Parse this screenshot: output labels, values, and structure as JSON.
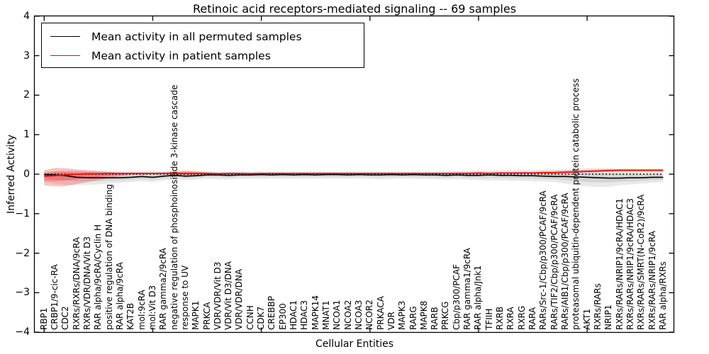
{
  "legend": {
    "items": [
      {
        "label": "Mean activity in all permuted samples",
        "color": "#000000"
      },
      {
        "label": "Mean activity in patient samples",
        "color": "#ff0000"
      }
    ]
  },
  "colors": {
    "permuted_line": "#000000",
    "patient_line": "#ff0000",
    "permuted_band": "rgba(0,0,0,0.085)",
    "patient_band": "rgba(255,0,0,0.24)",
    "zero_line": "#000000",
    "spine": "#000000",
    "background": "#ffffff"
  },
  "chart_data": {
    "type": "line",
    "title": "Retinoic acid receptors-mediated signaling -- 69 samples",
    "xlabel": "Cellular Entities",
    "ylabel": "Inferred Activity",
    "ylim": [
      -4,
      4
    ],
    "grid": false,
    "legend_position": "upper left",
    "y_tick_labels": [
      "4",
      "3",
      "2",
      "1",
      "0",
      "−1",
      "−2",
      "−3",
      "−4"
    ],
    "y_tick_values": [
      4,
      3,
      2,
      1,
      0,
      -1,
      -2,
      -3,
      -4
    ],
    "categories": [
      "RBP1",
      "CRBP1/9-cic-RA",
      "CDC2",
      "RXRs/RXRs/DNA/9cRA",
      "RXRs/VDR/DNA/Vit D3",
      "RAR alpha/9cRA/Cyclin H",
      "positive regulation of DNA binding",
      "RAR alpha/9cRA",
      "KAT2B",
      "mol:9cRA",
      "mol:Vit D3",
      "RAR gamma2/9cRA",
      "negative regulation of phosphoinositide 3-kinase cascade",
      "response to UV",
      "MAPK1",
      "PRKCA",
      "VDR/VDR/Vit D3",
      "VDR/Vit D3/DNA",
      "VDR/VDR/DNA",
      "CCNH",
      "CDK7",
      "CREBBP",
      "EP300",
      "HDAC1",
      "HDAC3",
      "MAPK14",
      "MNAT1",
      "NCOA1",
      "NCOA2",
      "NCOA3",
      "NCOR2",
      "PRKACA",
      "VDR",
      "MAPK3",
      "RARG",
      "MAPK8",
      "RARB",
      "PRKCG",
      "Cbp/p300/PCAF",
      "RAR gamma1/9cRA",
      "RAR alpha/Jnk1",
      "TFIIH",
      "RXRB",
      "RXRA",
      "RXRG",
      "RARA",
      "RARs/Src-1/Cbp/p300/PCAF/9cRA",
      "RARs/TIF2/Cbp/p300/PCAF/9cRA",
      "RARs/AIB1/Cbp/p300/PCAF/9cRA",
      "proteasomal ubiquitin-dependent protein catabolic process",
      "AKT1",
      "RXRs/RARs",
      "NRIP1",
      "RXRs/RARs/NRIP1/9cRA/HDAC1",
      "RXRs/RARs/NRIP1/9cRA/HDAC3",
      "RXRs/RARs/SMRT(N-CoR2)/9cRA",
      "RXRs/RARs/NRIP1/9cRA",
      "RAR alpha/RXRs"
    ],
    "series": [
      {
        "name": "Mean activity in all permuted samples",
        "color": "#000000",
        "style": "solid",
        "values": [
          -0.01,
          -0.02,
          -0.04,
          -0.08,
          -0.09,
          -0.09,
          -0.09,
          -0.09,
          -0.08,
          -0.06,
          -0.08,
          -0.05,
          -0.03,
          -0.05,
          -0.04,
          -0.02,
          -0.02,
          -0.03,
          -0.02,
          -0.02,
          -0.01,
          -0.02,
          -0.01,
          -0.02,
          -0.01,
          -0.02,
          -0.01,
          -0.01,
          -0.02,
          -0.01,
          -0.02,
          -0.02,
          -0.01,
          -0.02,
          -0.01,
          -0.02,
          -0.02,
          -0.03,
          -0.02,
          -0.03,
          -0.03,
          -0.02,
          -0.03,
          -0.03,
          -0.04,
          -0.04,
          -0.05,
          -0.06,
          -0.06,
          -0.07,
          -0.08,
          -0.09,
          -0.1,
          -0.1,
          -0.09,
          -0.09,
          -0.08,
          -0.08
        ]
      },
      {
        "name": "Mean activity in patient samples",
        "color": "#ff0000",
        "style": "solid",
        "values": [
          -0.05,
          -0.04,
          -0.02,
          0,
          0.01,
          0.01,
          0.02,
          0.02,
          0.02,
          0.02,
          0.02,
          0.02,
          0.02,
          0.02,
          0.02,
          0.02,
          0.01,
          0.02,
          0.02,
          0.01,
          0.02,
          0.02,
          0.02,
          0.02,
          0.02,
          0.02,
          0.02,
          0.02,
          0.02,
          0.02,
          0.02,
          0.02,
          0.02,
          0.02,
          0.02,
          0.02,
          0.02,
          0.02,
          0.02,
          0.02,
          0.03,
          0.02,
          0.03,
          0.03,
          0.03,
          0.03,
          0.04,
          0.04,
          0.05,
          0.06,
          0.07,
          0.08,
          0.09,
          0.1,
          0.1,
          0.1,
          0.1,
          0.1
        ]
      }
    ],
    "zero_reference_line": {
      "value": 0,
      "style": "dotted",
      "color": "#000000"
    },
    "bands": [
      {
        "name": "permuted-std-band",
        "color": "rgba(0,0,0,0.085)",
        "upper": [
          0.06,
          0.08,
          0.09,
          0.09,
          0.08,
          0.08,
          0.07,
          0.07,
          0.08,
          0.07,
          0.08,
          0.07,
          0.06,
          0.07,
          0.06,
          0.07,
          0.06,
          0.07,
          0.06,
          0.06,
          0.07,
          0.06,
          0.07,
          0.06,
          0.07,
          0.06,
          0.07,
          0.06,
          0.07,
          0.06,
          0.07,
          0.07,
          0.06,
          0.07,
          0.06,
          0.07,
          0.07,
          0.08,
          0.08,
          0.09,
          0.09,
          0.1,
          0.1,
          0.1,
          0.11,
          0.11,
          0.12,
          0.12,
          0.13,
          0.14,
          0.15,
          0.16,
          0.15,
          0.13,
          0.12,
          0.1,
          0.09,
          0.08
        ],
        "lower": [
          -0.2,
          -0.24,
          -0.27,
          -0.28,
          -0.27,
          -0.26,
          -0.24,
          -0.22,
          -0.2,
          -0.18,
          -0.2,
          -0.16,
          -0.13,
          -0.15,
          -0.14,
          -0.12,
          -0.13,
          -0.14,
          -0.12,
          -0.11,
          -0.12,
          -0.11,
          -0.12,
          -0.11,
          -0.12,
          -0.11,
          -0.12,
          -0.11,
          -0.12,
          -0.11,
          -0.12,
          -0.13,
          -0.12,
          -0.11,
          -0.12,
          -0.12,
          -0.13,
          -0.14,
          -0.13,
          -0.14,
          -0.15,
          -0.16,
          -0.16,
          -0.17,
          -0.17,
          -0.18,
          -0.19,
          -0.2,
          -0.24,
          -0.28,
          -0.31,
          -0.33,
          -0.32,
          -0.28,
          -0.26,
          -0.24,
          -0.22,
          -0.2
        ]
      },
      {
        "name": "patient-std-band",
        "color": "rgba(255,0,0,0.24)",
        "upper": [
          0.1,
          0.16,
          0.15,
          0.12,
          0.1,
          0.08,
          0.06,
          0.04,
          0.04,
          0.04,
          0.04,
          0.05,
          0.08,
          0.09,
          0.08,
          0.05,
          0.04,
          0.04,
          0.04,
          0.04,
          0.04,
          0.04,
          0.04,
          0.04,
          0.04,
          0.04,
          0.04,
          0.04,
          0.04,
          0.04,
          0.04,
          0.04,
          0.04,
          0.04,
          0.04,
          0.04,
          0.04,
          0.04,
          0.05,
          0.05,
          0.05,
          0.05,
          0.05,
          0.05,
          0.06,
          0.06,
          0.07,
          0.08,
          0.09,
          0.1,
          0.11,
          0.12,
          0.13,
          0.13,
          0.13,
          0.13,
          0.13,
          0.13
        ],
        "lower": [
          -0.28,
          -0.31,
          -0.3,
          -0.25,
          -0.2,
          -0.15,
          -0.1,
          -0.05,
          -0.02,
          -0.01,
          0,
          0,
          -0.04,
          -0.05,
          -0.03,
          -0.01,
          -0.01,
          -0.01,
          0,
          -0.01,
          0,
          0,
          0,
          0,
          0,
          0,
          0,
          0,
          0,
          0,
          0,
          0,
          0,
          0,
          0,
          0,
          0,
          0,
          0,
          0,
          0.01,
          0,
          0.01,
          0.01,
          0.01,
          0.01,
          0.01,
          0.01,
          0.02,
          0.03,
          0.04,
          0.05,
          0.06,
          0.07,
          0.07,
          0.07,
          0.07,
          0.07
        ]
      }
    ],
    "inner_band_ratio": 0.5
  }
}
